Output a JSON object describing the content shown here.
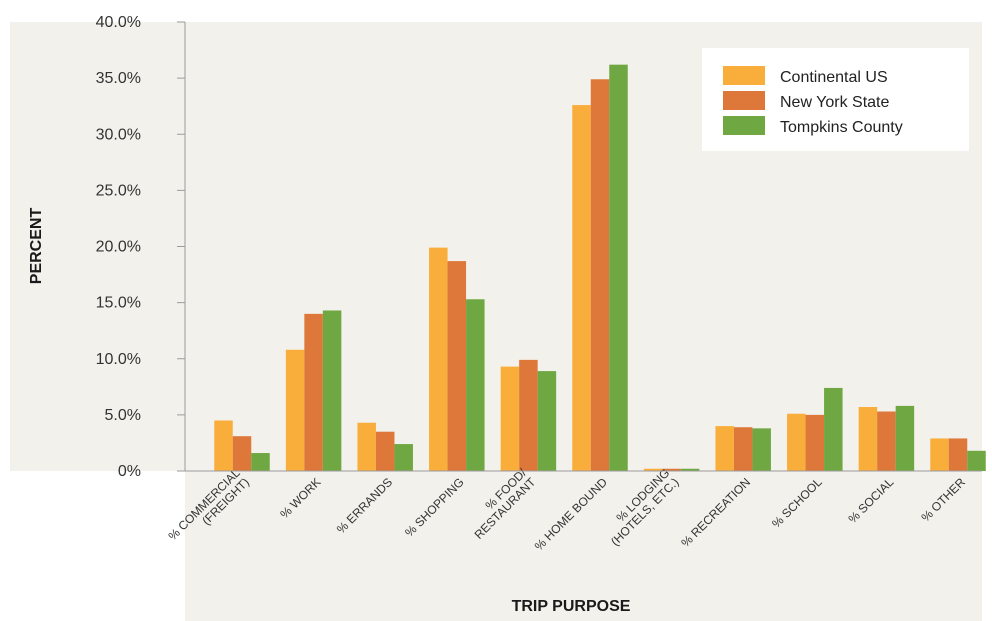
{
  "chart_data": {
    "type": "bar",
    "title": "",
    "xlabel": "TRIP PURPOSE",
    "ylabel": "PERCENT",
    "ylim": [
      0,
      40
    ],
    "y_ticks": [
      "0%",
      "5.0%",
      "10.0%",
      "15.0%",
      "20.0%",
      "25.0%",
      "30.0%",
      "35.0%",
      "40.0%"
    ],
    "categories": [
      [
        "% COMMERCIAL",
        "(FREIGHT)"
      ],
      [
        "% WORK"
      ],
      [
        "% ERRANDS"
      ],
      [
        "% SHOPPING"
      ],
      [
        "% FOOD/",
        "RESTAURANT"
      ],
      [
        "% HOME BOUND"
      ],
      [
        "% LODGING",
        "(HOTELS, ETC.)"
      ],
      [
        "% RECREATION"
      ],
      [
        "% SCHOOL"
      ],
      [
        "% SOCIAL"
      ],
      [
        "% OTHER"
      ]
    ],
    "series": [
      {
        "name": "Continental US",
        "color": "#F9AE3C",
        "values": [
          4.5,
          10.8,
          4.3,
          19.9,
          9.3,
          32.6,
          0.2,
          4.0,
          5.1,
          5.7,
          2.9
        ]
      },
      {
        "name": "New York State",
        "color": "#DE783A",
        "values": [
          3.1,
          14.0,
          3.5,
          18.7,
          9.9,
          34.9,
          0.2,
          3.9,
          5.0,
          5.3,
          2.9
        ]
      },
      {
        "name": "Tompkins County",
        "color": "#6FA842",
        "values": [
          1.6,
          14.3,
          2.4,
          15.3,
          8.9,
          36.2,
          0.2,
          3.8,
          7.4,
          5.8,
          1.8
        ]
      }
    ],
    "grid": false,
    "legend_position": "top-right",
    "panel_color": "#F3F1EC",
    "axis_color": "#9B9B9B"
  }
}
